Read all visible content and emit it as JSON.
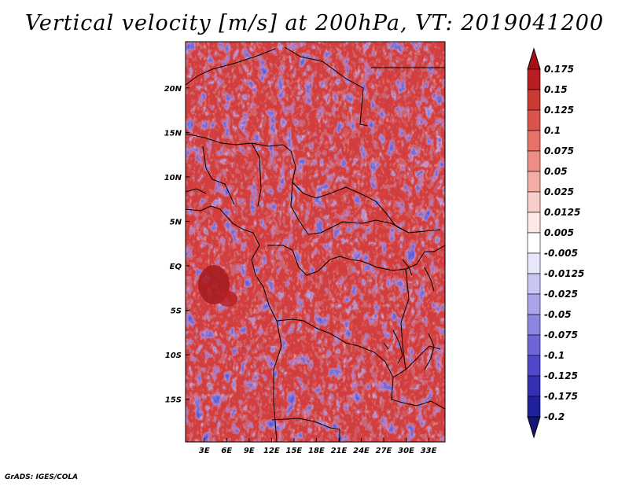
{
  "chart_data": {
    "type": "heatmap",
    "title": "Vertical velocity [m/s] at 200hPa, VT: 2019041200",
    "x_ticks": [
      "3E",
      "6E",
      "9E",
      "12E",
      "15E",
      "18E",
      "21E",
      "24E",
      "27E",
      "30E",
      "33E"
    ],
    "x_tick_values": [
      3,
      6,
      9,
      12,
      15,
      18,
      21,
      24,
      27,
      30,
      33
    ],
    "y_ticks": [
      "20N",
      "15N",
      "10N",
      "5N",
      "EQ",
      "5S",
      "10S",
      "15S"
    ],
    "y_tick_values": [
      20,
      15,
      10,
      5,
      0,
      -5,
      -10,
      -15
    ],
    "xlim": [
      0.5,
      35.2
    ],
    "ylim": [
      -19.8,
      25.2
    ],
    "colorbar": {
      "labels": [
        "0.175",
        "0.15",
        "0.125",
        "0.1",
        "0.075",
        "0.05",
        "0.025",
        "0.0125",
        "0.005",
        "-0.005",
        "-0.0125",
        "-0.025",
        "-0.05",
        "-0.075",
        "-0.1",
        "-0.125",
        "-0.175",
        "-0.2"
      ],
      "colors": [
        "#a50f15",
        "#b81d21",
        "#cb3a34",
        "#db544c",
        "#e57168",
        "#ec8e86",
        "#f3aca6",
        "#f8cdca",
        "#fce8e6",
        "#ffffff",
        "#e8e6fb",
        "#cac6f2",
        "#aaa4ea",
        "#8c86e0",
        "#6e66d6",
        "#4f48c8",
        "#3330b4",
        "#20209a",
        "#14147a"
      ]
    }
  },
  "credit": "GrADS: IGES/COLA"
}
